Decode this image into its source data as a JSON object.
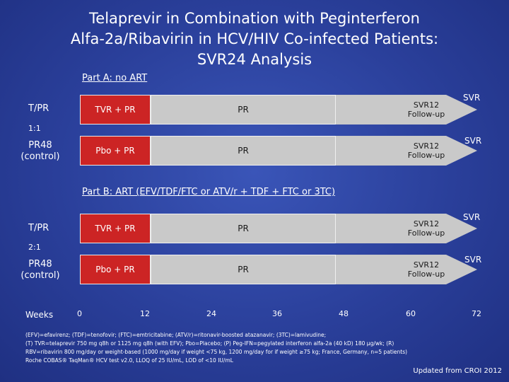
{
  "title": {
    "line1": "Telaprevir in Combination with Peginterferon",
    "line2": "Alfa-2a/Ribavirin in HCV/HIV Co-infected Patients:",
    "line3": "SVR24 Analysis"
  },
  "part_a": {
    "label": "Part A: no ART",
    "ratio": "1:1",
    "arm1": {
      "label": "T/PR",
      "tvr": "TVR + PR",
      "pr": "PR",
      "followup": "SVR12 Follow-up",
      "svr": "SVR"
    },
    "arm2": {
      "label_line1": "PR48",
      "label_line2": "(control)",
      "pbo": "Pbo + PR",
      "pr": "PR",
      "followup": "SVR12 Follow-up",
      "svr": "SVR"
    }
  },
  "part_b": {
    "label": "Part B: ART (EFV/TDF/FTC or ATV/r + TDF + FTC or 3TC)",
    "ratio": "2:1",
    "arm1": {
      "label": "T/PR",
      "tvr": "TVR + PR",
      "pr": "PR",
      "followup": "SVR12 Follow-up",
      "svr": "SVR"
    },
    "arm2": {
      "label_line1": "PR48",
      "label_line2": "(control)",
      "pbo": "Pbo + PR",
      "pr": "PR",
      "followup": "SVR12 Follow-up",
      "svr": "SVR"
    }
  },
  "axis": {
    "label": "Weeks",
    "ticks": [
      "0",
      "12",
      "24",
      "36",
      "48",
      "60",
      "72"
    ]
  },
  "footnote": {
    "line1": "(EFV)=efavirenz; (TDF)=tenofovir; (FTC)=emtricitabine; (ATV/r)=ritonavir-boosted atazanavir; (3TC)=lamivudine;",
    "line2": "(T) TVR=telaprevir 750 mg q8h or 1125 mg q8h (with EFV); Pbo=Placebo; (P) Peg-IFN=pegylated interferon alfa-2a (40 kD) 180 µg/wk; (R)",
    "line3": "RBV=ribavirin 800 mg/day or weight-based (1000 mg/day if weight <75 kg, 1200 mg/day for if weight ≥75 kg; France, Germany, n=5 patients)",
    "line4": "Roche COBAS® TaqMan® HCV test v2.0, LLOQ of 25 IU/mL, LOD of <10 IU/mL"
  },
  "updated": "Updated from CROI 2012"
}
